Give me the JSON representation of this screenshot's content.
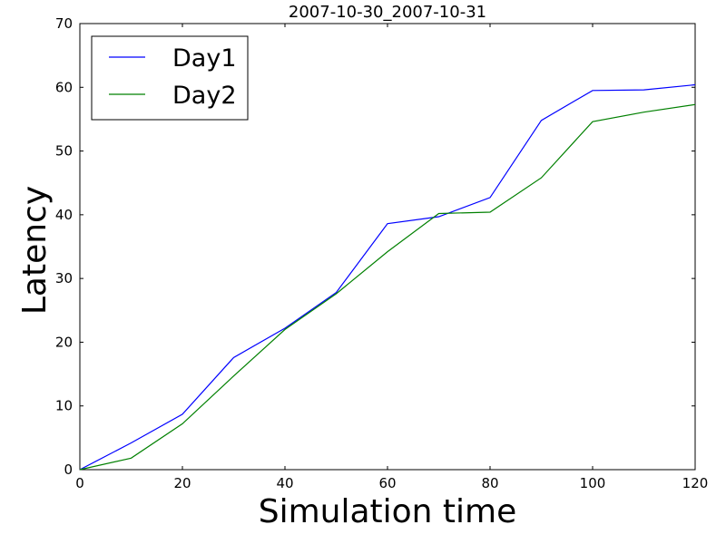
{
  "chart_data": {
    "type": "line",
    "title": "2007-10-30_2007-10-31",
    "xlabel": "Simulation time",
    "ylabel": "Latency",
    "xlim": [
      0,
      120
    ],
    "ylim": [
      0,
      70
    ],
    "xticks": [
      0,
      20,
      40,
      60,
      80,
      100,
      120
    ],
    "yticks": [
      0,
      10,
      20,
      30,
      40,
      50,
      60,
      70
    ],
    "grid": false,
    "legend_position": "top-left",
    "x": [
      0,
      10,
      20,
      30,
      40,
      50,
      60,
      70,
      80,
      90,
      100,
      110,
      120
    ],
    "series": [
      {
        "name": "Day1",
        "color": "#0000ff",
        "values": [
          0,
          4.2,
          8.7,
          17.6,
          22.2,
          27.8,
          38.6,
          39.7,
          42.7,
          54.8,
          59.5,
          59.6,
          60.4
        ]
      },
      {
        "name": "Day2",
        "color": "#008000",
        "values": [
          0,
          1.8,
          7.2,
          14.7,
          22.0,
          27.6,
          34.2,
          40.2,
          40.4,
          45.8,
          54.6,
          56.1,
          57.3
        ]
      }
    ]
  }
}
